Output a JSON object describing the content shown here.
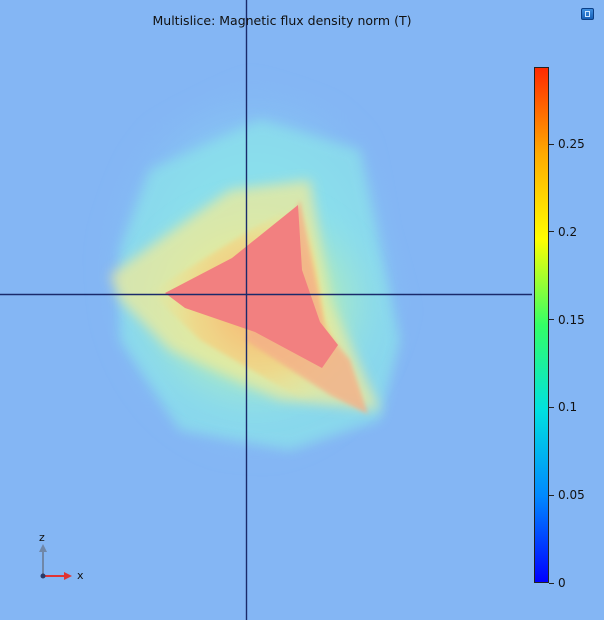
{
  "plot": {
    "title": "Multislice: Magnetic flux density norm (T)"
  },
  "colorbar": {
    "ticks": [
      {
        "value": 0.25,
        "label": "0.25"
      },
      {
        "value": 0.2,
        "label": "0.2"
      },
      {
        "value": 0.15,
        "label": "0.15"
      },
      {
        "value": 0.1,
        "label": "0.1"
      },
      {
        "value": 0.05,
        "label": "0.05"
      },
      {
        "value": 0,
        "label": "0"
      }
    ],
    "colormap": [
      "#0000ff",
      "#0088ff",
      "#00e0e0",
      "#33ff66",
      "#ffff00",
      "#ffaa00",
      "#ff2a00"
    ]
  },
  "axes_triad": {
    "vertical_label": "z",
    "horizontal_label": "x",
    "vertical_color": "#6f87a8",
    "horizontal_color": "#e03333"
  },
  "colors": {
    "background": "#84b6f4",
    "crosshair": "#1a2a6a",
    "hot_core": "#f28080"
  },
  "icons": {
    "view_button": "view-toggle-icon"
  }
}
